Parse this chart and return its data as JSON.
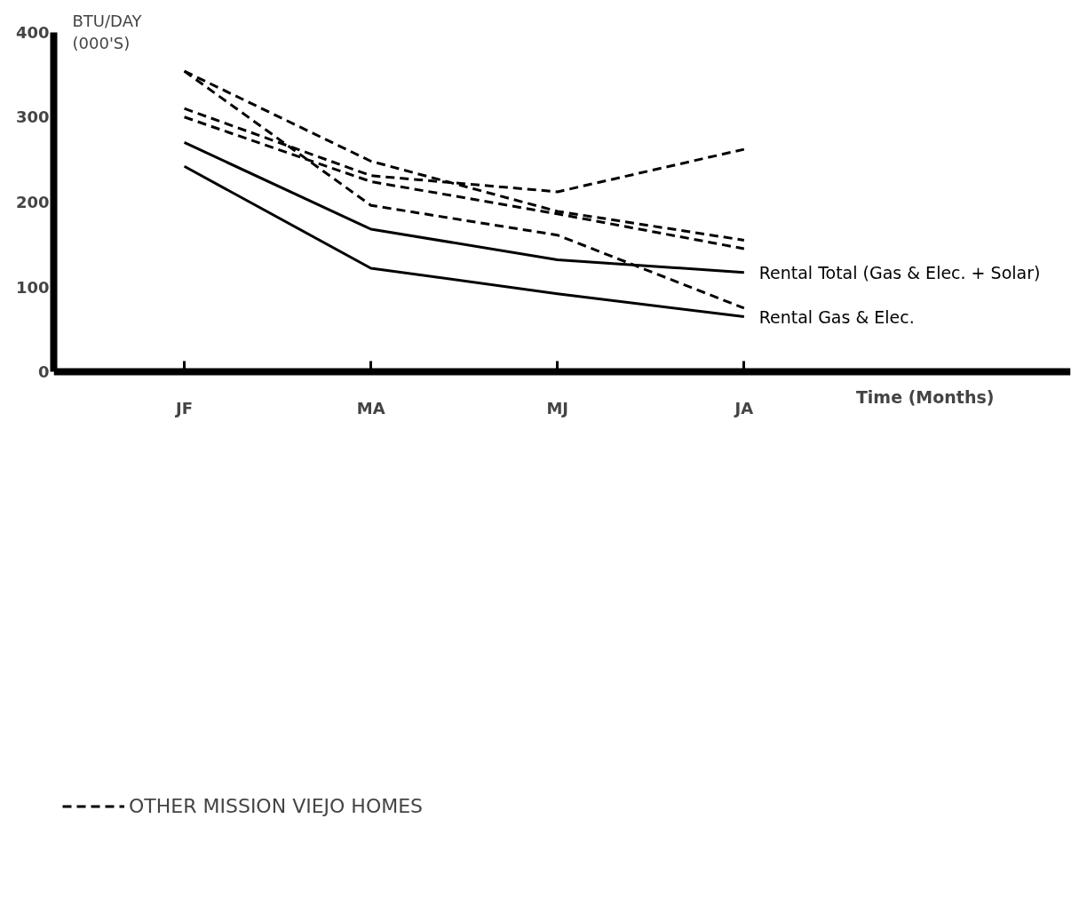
{
  "chart_data": {
    "type": "line",
    "ylabel": "BTU/DAY (000'S)",
    "xlabel": "Time (Months)",
    "categories": [
      "JF",
      "MA",
      "MJ",
      "JA"
    ],
    "ylim": [
      0,
      400
    ],
    "yticks": [
      0,
      100,
      200,
      300,
      400
    ],
    "grid": false,
    "legend": "bottom",
    "marker": "none",
    "series": [
      {
        "name": "Rental Total (Gas & Elec. + Solar)",
        "color": "#000000",
        "line_style": "solid",
        "values": [
          270,
          168,
          132,
          117
        ]
      },
      {
        "name": "Rental Gas & Elec.",
        "color": "#000000",
        "line_style": "solid",
        "values": [
          242,
          122,
          92,
          65
        ]
      },
      {
        "name": "OTHER MISSION VIEJO HOMES",
        "color": "#000000",
        "line_style": "dashed",
        "values": [
          354,
          248,
          189,
          155
        ]
      },
      {
        "color": "#000000",
        "line_style": "dashed",
        "values": [
          354,
          196,
          161,
          75
        ]
      },
      {
        "color": "#000000",
        "line_style": "dashed",
        "values": [
          310,
          231,
          212,
          262
        ]
      },
      {
        "color": "#000000",
        "line_style": "dashed",
        "values": [
          300,
          224,
          186,
          145
        ]
      }
    ]
  }
}
